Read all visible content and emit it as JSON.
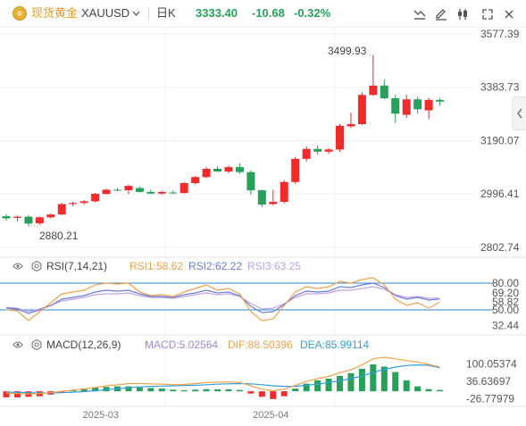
{
  "header": {
    "symbol_name": "现货黄金",
    "symbol_code": "XAUUSD",
    "period": "日K",
    "last_price": "3333.40",
    "change": "-10.68",
    "change_pct": "-0.32%"
  },
  "colors": {
    "up": "#ef2b2b",
    "down": "#27a05a",
    "price_text": "#27a05a",
    "rsi1": "#f0a24a",
    "rsi2": "#6c7dd6",
    "rsi3": "#c3a1e6",
    "macd": "#a385d8",
    "dif": "#f0a24a",
    "dea": "#2e9fe0",
    "band": "#2a8ad3"
  },
  "icons": [
    "coin-icon",
    "dropdown-icon",
    "indicator-icon",
    "draw-pen-icon",
    "candle-type-icon",
    "fullscreen-icon",
    "close-icon",
    "chevron-left-icon",
    "settings-gear-icon"
  ],
  "rsi_panel": {
    "label": "RSI(7,14,21)",
    "rsi1": "RSI1:58.62",
    "rsi2": "RSI2:62.22",
    "rsi3": "RSI3:63.25",
    "axis_labels": [
      "80.00",
      "69.20",
      "58.82",
      "50.00",
      "32.44"
    ]
  },
  "macd_panel": {
    "label": "MACD(12,26,9)",
    "macd": "MACD:5.02564",
    "dif": "DIF:88.50396",
    "dea": "DEA:85.99114",
    "axis_labels": [
      "100.05374",
      "36.63697",
      "-26.77979"
    ]
  },
  "x_labels": [
    "2025-03",
    "2025-04"
  ],
  "chart_data": {
    "type": "candlestick",
    "price_axis_labels": [
      "3577.39",
      "3383.73",
      "3190.07",
      "2996.41",
      "2802.74"
    ],
    "ylim": [
      2802.74,
      3577.39
    ],
    "annotations": {
      "high": "3499.93",
      "low": "2880.21"
    },
    "candles": [
      {
        "o": 2916,
        "h": 2924,
        "l": 2900,
        "c": 2908
      },
      {
        "o": 2910,
        "h": 2918,
        "l": 2898,
        "c": 2914
      },
      {
        "o": 2914,
        "h": 2920,
        "l": 2880,
        "c": 2889
      },
      {
        "o": 2890,
        "h": 2915,
        "l": 2885,
        "c": 2912
      },
      {
        "o": 2912,
        "h": 2926,
        "l": 2908,
        "c": 2922
      },
      {
        "o": 2922,
        "h": 2964,
        "l": 2920,
        "c": 2960
      },
      {
        "o": 2960,
        "h": 2968,
        "l": 2952,
        "c": 2964
      },
      {
        "o": 2964,
        "h": 2974,
        "l": 2958,
        "c": 2970
      },
      {
        "o": 2970,
        "h": 3000,
        "l": 2966,
        "c": 2997
      },
      {
        "o": 2997,
        "h": 3016,
        "l": 2994,
        "c": 3012
      },
      {
        "o": 3012,
        "h": 3018,
        "l": 3006,
        "c": 3010
      },
      {
        "o": 3010,
        "h": 3030,
        "l": 2996,
        "c": 3026
      },
      {
        "o": 3018,
        "h": 3024,
        "l": 3002,
        "c": 3004
      },
      {
        "o": 3004,
        "h": 3012,
        "l": 2996,
        "c": 2998
      },
      {
        "o": 2998,
        "h": 3008,
        "l": 2994,
        "c": 3004
      },
      {
        "o": 3002,
        "h": 3010,
        "l": 2996,
        "c": 3000
      },
      {
        "o": 3000,
        "h": 3040,
        "l": 2998,
        "c": 3036
      },
      {
        "o": 3036,
        "h": 3062,
        "l": 3032,
        "c": 3058
      },
      {
        "o": 3058,
        "h": 3094,
        "l": 3054,
        "c": 3088
      },
      {
        "o": 3088,
        "h": 3098,
        "l": 3076,
        "c": 3078
      },
      {
        "o": 3078,
        "h": 3100,
        "l": 3072,
        "c": 3094
      },
      {
        "o": 3094,
        "h": 3108,
        "l": 3070,
        "c": 3076
      },
      {
        "o": 3076,
        "h": 3082,
        "l": 2994,
        "c": 3010
      },
      {
        "o": 3010,
        "h": 3012,
        "l": 2948,
        "c": 2958
      },
      {
        "o": 2960,
        "h": 3012,
        "l": 2956,
        "c": 2968
      },
      {
        "o": 2968,
        "h": 3046,
        "l": 2962,
        "c": 3040
      },
      {
        "o": 3040,
        "h": 3130,
        "l": 3034,
        "c": 3124
      },
      {
        "o": 3124,
        "h": 3170,
        "l": 3114,
        "c": 3160
      },
      {
        "o": 3160,
        "h": 3172,
        "l": 3140,
        "c": 3150
      },
      {
        "o": 3150,
        "h": 3164,
        "l": 3142,
        "c": 3158
      },
      {
        "o": 3158,
        "h": 3250,
        "l": 3150,
        "c": 3244
      },
      {
        "o": 3242,
        "h": 3292,
        "l": 3236,
        "c": 3250
      },
      {
        "o": 3250,
        "h": 3366,
        "l": 3246,
        "c": 3356
      },
      {
        "o": 3356,
        "h": 3500,
        "l": 3352,
        "c": 3390
      },
      {
        "o": 3390,
        "h": 3412,
        "l": 3340,
        "c": 3344
      },
      {
        "o": 3344,
        "h": 3356,
        "l": 3254,
        "c": 3288
      },
      {
        "o": 3284,
        "h": 3356,
        "l": 3272,
        "c": 3340
      },
      {
        "o": 3340,
        "h": 3350,
        "l": 3288,
        "c": 3304
      },
      {
        "o": 3300,
        "h": 3346,
        "l": 3268,
        "c": 3338
      },
      {
        "o": 3338,
        "h": 3344,
        "l": 3318,
        "c": 3332
      }
    ],
    "rsi": {
      "ylim": [
        25,
        90
      ],
      "bands": [
        80.0,
        50.0
      ],
      "rsi1": [
        50,
        49,
        38,
        48,
        58,
        68,
        70,
        72,
        78,
        80,
        79,
        80,
        70,
        66,
        67,
        65,
        70,
        74,
        78,
        72,
        74,
        68,
        48,
        38,
        40,
        55,
        70,
        76,
        74,
        76,
        82,
        80,
        84,
        86,
        78,
        62,
        55,
        58,
        52,
        58.62
      ],
      "rsi2": [
        52,
        51,
        46,
        50,
        55,
        62,
        64,
        66,
        70,
        72,
        71,
        72,
        68,
        65,
        65,
        64,
        67,
        69,
        72,
        69,
        70,
        66,
        54,
        47,
        48,
        56,
        66,
        71,
        70,
        71,
        76,
        75,
        78,
        80,
        75,
        66,
        62,
        64,
        61,
        62.22
      ],
      "rsi3": [
        53,
        52,
        48,
        51,
        55,
        60,
        62,
        64,
        67,
        68,
        68,
        69,
        66,
        64,
        64,
        63,
        65,
        67,
        69,
        67,
        68,
        65,
        57,
        51,
        52,
        57,
        64,
        68,
        68,
        69,
        72,
        72,
        74,
        76,
        73,
        67,
        64,
        65,
        63,
        63.25
      ]
    },
    "macd": {
      "ylim": [
        -45,
        150
      ],
      "dif": [
        -6,
        -8,
        -10,
        -8,
        -5,
        0,
        4,
        8,
        14,
        20,
        24,
        28,
        28,
        27,
        26,
        24,
        25,
        28,
        32,
        33,
        34,
        32,
        20,
        8,
        2,
        8,
        22,
        36,
        46,
        54,
        68,
        78,
        96,
        118,
        124,
        118,
        112,
        106,
        98,
        88.5
      ],
      "dea": [
        -3,
        -4,
        -5,
        -6,
        -6,
        -5,
        -3,
        -1,
        2,
        6,
        9,
        13,
        16,
        18,
        19,
        20,
        21,
        22,
        24,
        26,
        27,
        28,
        27,
        24,
        20,
        18,
        18,
        22,
        26,
        32,
        38,
        46,
        56,
        68,
        80,
        88,
        94,
        96,
        94,
        85.99
      ],
      "hist": [
        -22,
        -22,
        -20,
        -18,
        -12,
        -6,
        4,
        10,
        14,
        16,
        18,
        18,
        14,
        12,
        10,
        6,
        4,
        6,
        8,
        7,
        7,
        5,
        -8,
        -20,
        -28,
        -18,
        10,
        28,
        40,
        46,
        56,
        66,
        82,
        98,
        90,
        70,
        40,
        18,
        8,
        5.03
      ]
    }
  }
}
